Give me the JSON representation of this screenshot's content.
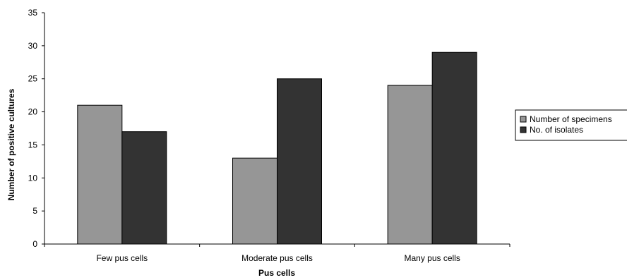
{
  "chart_data": {
    "type": "bar",
    "title": "",
    "xlabel": "Pus cells",
    "ylabel": "Number of positive cultures",
    "categories": [
      "Few pus cells",
      "Moderate pus cells",
      "Many pus cells"
    ],
    "series": [
      {
        "name": "Number of specimens",
        "values": [
          21,
          13,
          24
        ],
        "color": "#969696"
      },
      {
        "name": "No. of isolates",
        "values": [
          17,
          25,
          29
        ],
        "color": "#333333"
      }
    ],
    "ylim": [
      0,
      35
    ],
    "yticks": [
      0,
      5,
      10,
      15,
      20,
      25,
      30,
      35
    ],
    "grid": false,
    "legend_position": "right"
  }
}
